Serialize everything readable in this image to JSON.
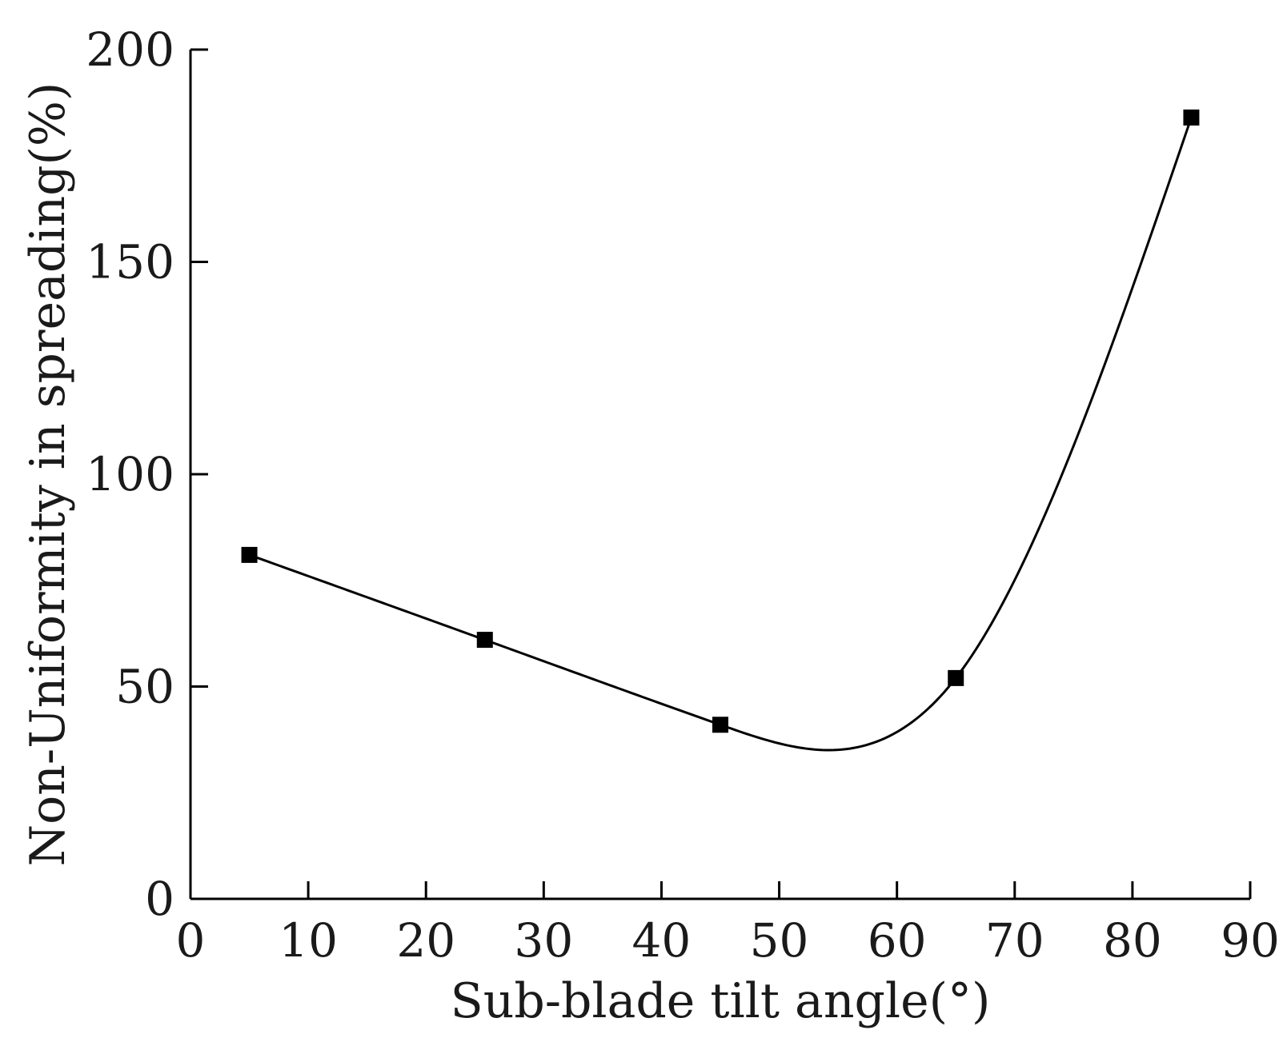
{
  "chart_data": {
    "type": "line",
    "title": "",
    "xlabel": "Sub-blade tilt angle(°)",
    "ylabel": "Non-Uniformity in spreading(%)",
    "xlim": [
      0,
      90
    ],
    "ylim": [
      0,
      200
    ],
    "x_ticks": [
      0,
      10,
      20,
      30,
      40,
      50,
      60,
      70,
      80,
      90
    ],
    "y_ticks": [
      0,
      50,
      100,
      150,
      200
    ],
    "grid": false,
    "series": [
      {
        "x": [
          5,
          25,
          45,
          65,
          85
        ],
        "values": [
          81,
          61,
          41,
          52,
          184
        ],
        "marker": "square",
        "line": "smooth",
        "color": "#000000"
      }
    ]
  }
}
